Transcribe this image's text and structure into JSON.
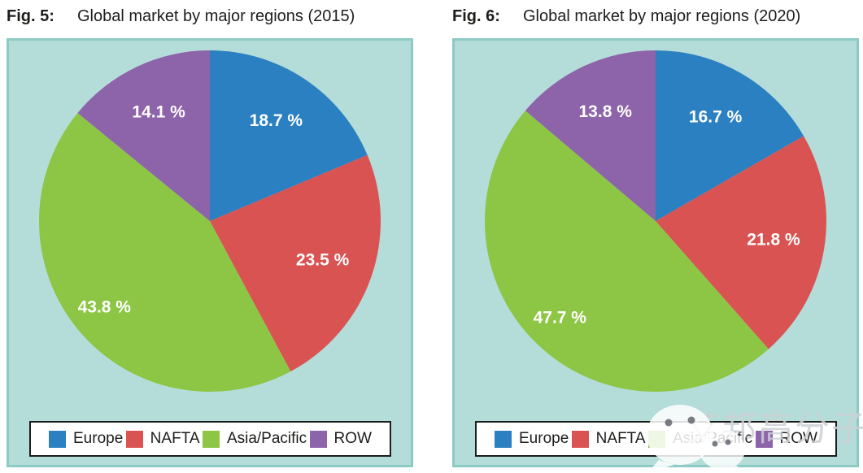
{
  "figures": [
    {
      "label": "Fig. 5:",
      "title": "Global market by major regions (2015)"
    },
    {
      "label": "Fig. 6:",
      "title": "Global market by major regions (2020)"
    }
  ],
  "chart_data": [
    {
      "type": "pie",
      "title": "Global market by major regions (2015)",
      "categories": [
        "Europe",
        "NAFTA",
        "Asia/Pacific",
        "ROW"
      ],
      "values": [
        18.7,
        23.5,
        43.8,
        14.1
      ],
      "value_labels": [
        "18.7 %",
        "23.5 %",
        "43.8 %",
        "14.1 %"
      ],
      "slice_colors": [
        "#2b80c1",
        "#d95352",
        "#8dc544",
        "#8d63a9"
      ],
      "start_angle_deg": 0,
      "direction": "clockwise",
      "legend_position": "bottom"
    },
    {
      "type": "pie",
      "title": "Global market by major regions (2020)",
      "categories": [
        "Europe",
        "NAFTA",
        "Asia/Pacific",
        "ROW"
      ],
      "values": [
        16.7,
        21.8,
        47.7,
        13.8
      ],
      "value_labels": [
        "16.7 %",
        "21.8 %",
        "47.7 %",
        "13.8 %"
      ],
      "slice_colors": [
        "#2b80c1",
        "#d95352",
        "#8dc544",
        "#8d63a9"
      ],
      "start_angle_deg": 0,
      "direction": "clockwise",
      "legend_position": "bottom"
    }
  ],
  "colors": {
    "panel_bg": "#b4ddd9",
    "panel_border": "#8ccbc5",
    "europe": "#2b80c1",
    "nafta": "#d95352",
    "asia_pacific": "#8dc544",
    "row": "#8d63a9",
    "title_text": "#1d1d1b",
    "slice_label_text": "#ffffff",
    "legend_bg": "#ffffff",
    "legend_border": "#1d1d1b"
  },
  "watermark": {
    "icon": "wechat-icon",
    "text": "艾邦高分子"
  }
}
